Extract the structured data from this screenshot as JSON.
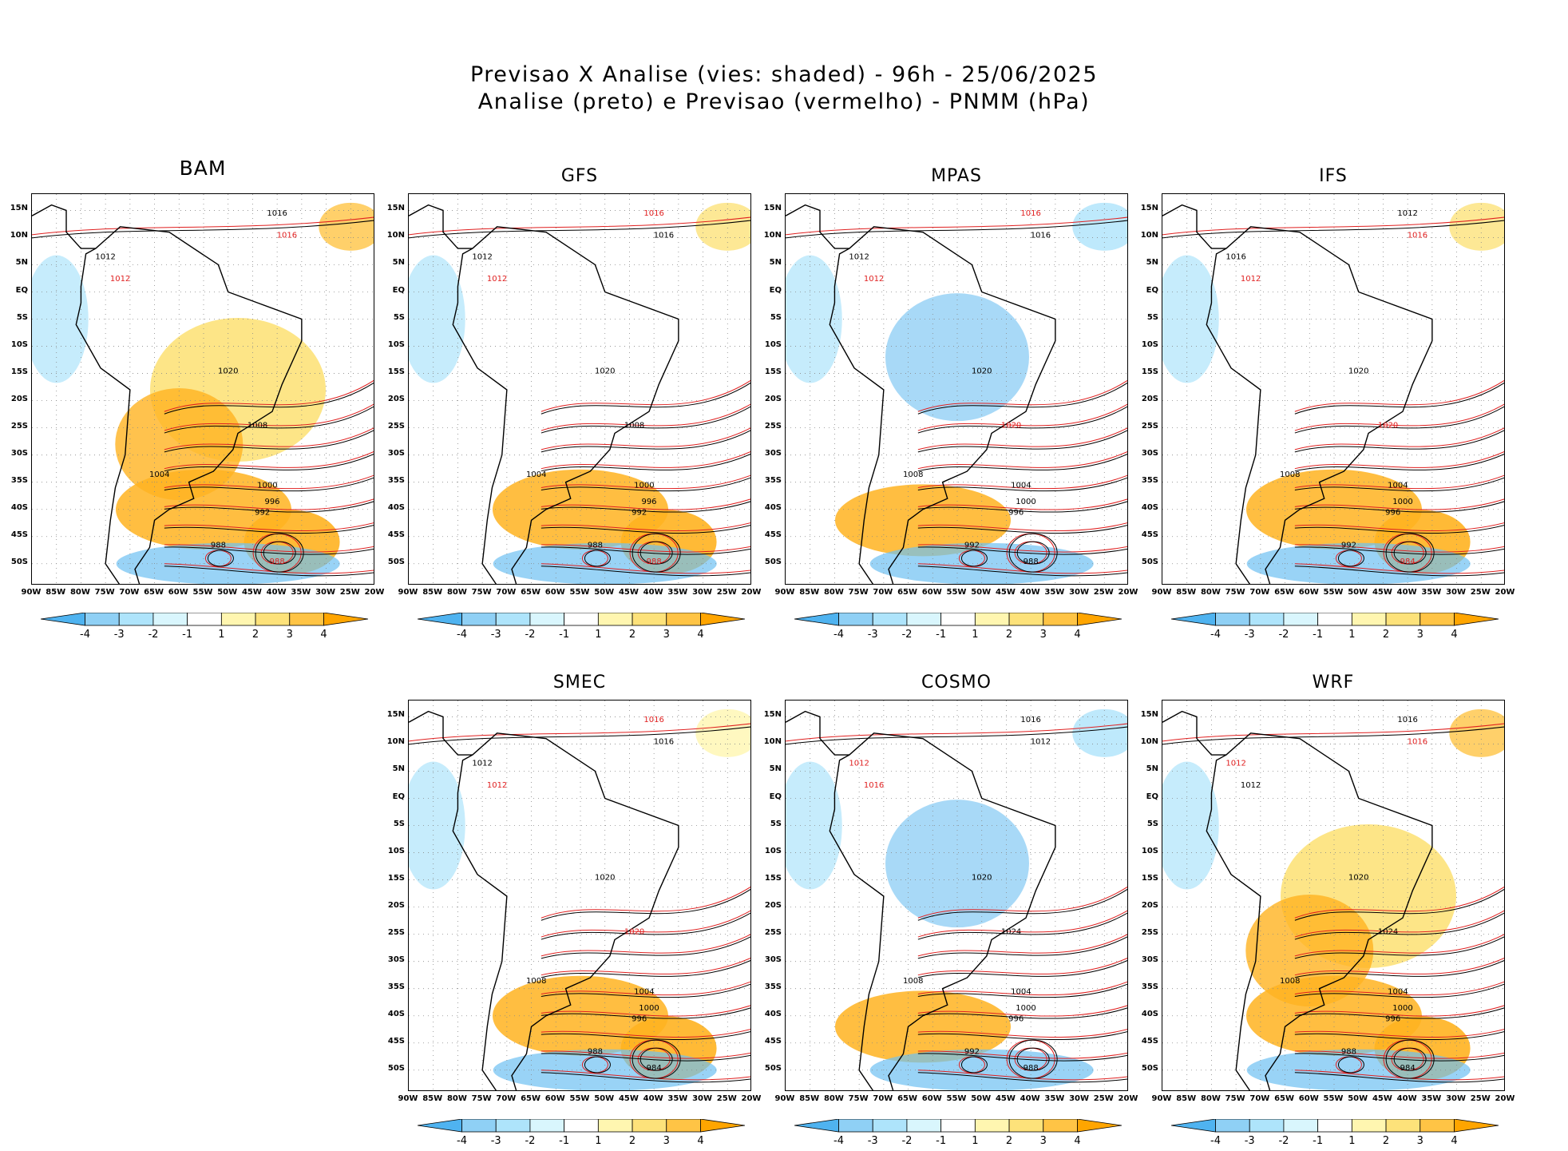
{
  "title_line1": "Previsao X Analise (vies: shaded) - 96h - 25/06/2025",
  "title_line2": "Analise (preto) e Previsao (vermelho) - PNMM (hPa)",
  "lat_labels": [
    "15N",
    "10N",
    "5N",
    "EQ",
    "5S",
    "10S",
    "15S",
    "20S",
    "25S",
    "30S",
    "35S",
    "40S",
    "45S",
    "50S"
  ],
  "lon_labels": [
    "90W",
    "85W",
    "80W",
    "75W",
    "70W",
    "65W",
    "60W",
    "55W",
    "50W",
    "45W",
    "40W",
    "35W",
    "30W",
    "25W",
    "20W"
  ],
  "colorbar": {
    "labels": [
      "-4",
      "-3",
      "-2",
      "-1",
      "1",
      "2",
      "3",
      "4"
    ],
    "colors": [
      "#4fb3f0",
      "#8fd0f5",
      "#aee4fb",
      "#d9f6fd",
      "#ffffff",
      "#fff6b0",
      "#fde27a",
      "#ffc445",
      "#ffa500"
    ]
  },
  "colors": {
    "analysis": "#000000",
    "forecast": "#e02020",
    "bias_pos": "#ffb320",
    "bias_neg": "#6ec0f2"
  },
  "panels": [
    {
      "name": "BAM",
      "bias_pattern": "warm",
      "labels": [
        [
          "1016",
          "black"
        ],
        [
          "1016",
          "red"
        ],
        [
          "1012",
          "black"
        ],
        [
          "1012",
          "red"
        ],
        [
          "1020",
          "black"
        ],
        [
          "1008",
          "black"
        ],
        [
          "1004",
          "black"
        ],
        [
          "1000",
          "black"
        ],
        [
          "996",
          "black"
        ],
        [
          "992",
          "black"
        ],
        [
          "988",
          "black"
        ],
        [
          "988",
          "red"
        ]
      ]
    },
    {
      "name": "GFS",
      "bias_pattern": "mixed",
      "labels": [
        [
          "1016",
          "red"
        ],
        [
          "1016",
          "black"
        ],
        [
          "1012",
          "black"
        ],
        [
          "1012",
          "red"
        ],
        [
          "1020",
          "black"
        ],
        [
          "1008",
          "black"
        ],
        [
          "1004",
          "black"
        ],
        [
          "1000",
          "black"
        ],
        [
          "996",
          "black"
        ],
        [
          "992",
          "black"
        ],
        [
          "988",
          "black"
        ],
        [
          "988",
          "red"
        ]
      ]
    },
    {
      "name": "MPAS",
      "bias_pattern": "cold-north",
      "labels": [
        [
          "1016",
          "red"
        ],
        [
          "1016",
          "black"
        ],
        [
          "1012",
          "black"
        ],
        [
          "1012",
          "red"
        ],
        [
          "1020",
          "black"
        ],
        [
          "1020",
          "red"
        ],
        [
          "1008",
          "black"
        ],
        [
          "1004",
          "black"
        ],
        [
          "1000",
          "black"
        ],
        [
          "996",
          "black"
        ],
        [
          "992",
          "black"
        ],
        [
          "988",
          "black"
        ]
      ]
    },
    {
      "name": "IFS",
      "bias_pattern": "mixed",
      "labels": [
        [
          "1012",
          "black"
        ],
        [
          "1016",
          "red"
        ],
        [
          "1016",
          "black"
        ],
        [
          "1012",
          "red"
        ],
        [
          "1020",
          "black"
        ],
        [
          "1020",
          "red"
        ],
        [
          "1008",
          "black"
        ],
        [
          "1004",
          "black"
        ],
        [
          "1000",
          "black"
        ],
        [
          "996",
          "black"
        ],
        [
          "992",
          "black"
        ],
        [
          "984",
          "red"
        ]
      ]
    },
    {
      "name": "SMEC",
      "bias_pattern": "warm-south",
      "labels": [
        [
          "1016",
          "red"
        ],
        [
          "1016",
          "black"
        ],
        [
          "1012",
          "black"
        ],
        [
          "1012",
          "red"
        ],
        [
          "1020",
          "black"
        ],
        [
          "1020",
          "red"
        ],
        [
          "1008",
          "black"
        ],
        [
          "1004",
          "black"
        ],
        [
          "1000",
          "black"
        ],
        [
          "996",
          "black"
        ],
        [
          "988",
          "black"
        ],
        [
          "984",
          "black"
        ]
      ]
    },
    {
      "name": "COSMO",
      "bias_pattern": "cold-north",
      "labels": [
        [
          "1016",
          "black"
        ],
        [
          "1012",
          "black"
        ],
        [
          "1012",
          "red"
        ],
        [
          "1016",
          "red"
        ],
        [
          "1020",
          "black"
        ],
        [
          "1024",
          "black"
        ],
        [
          "1008",
          "black"
        ],
        [
          "1004",
          "black"
        ],
        [
          "1000",
          "black"
        ],
        [
          "996",
          "black"
        ],
        [
          "992",
          "black"
        ],
        [
          "988",
          "black"
        ]
      ]
    },
    {
      "name": "WRF",
      "bias_pattern": "warm",
      "labels": [
        [
          "1016",
          "black"
        ],
        [
          "1016",
          "red"
        ],
        [
          "1012",
          "red"
        ],
        [
          "1012",
          "black"
        ],
        [
          "1020",
          "black"
        ],
        [
          "1024",
          "black"
        ],
        [
          "1008",
          "black"
        ],
        [
          "1004",
          "black"
        ],
        [
          "1000",
          "black"
        ],
        [
          "996",
          "black"
        ],
        [
          "988",
          "black"
        ],
        [
          "984",
          "black"
        ]
      ]
    }
  ]
}
